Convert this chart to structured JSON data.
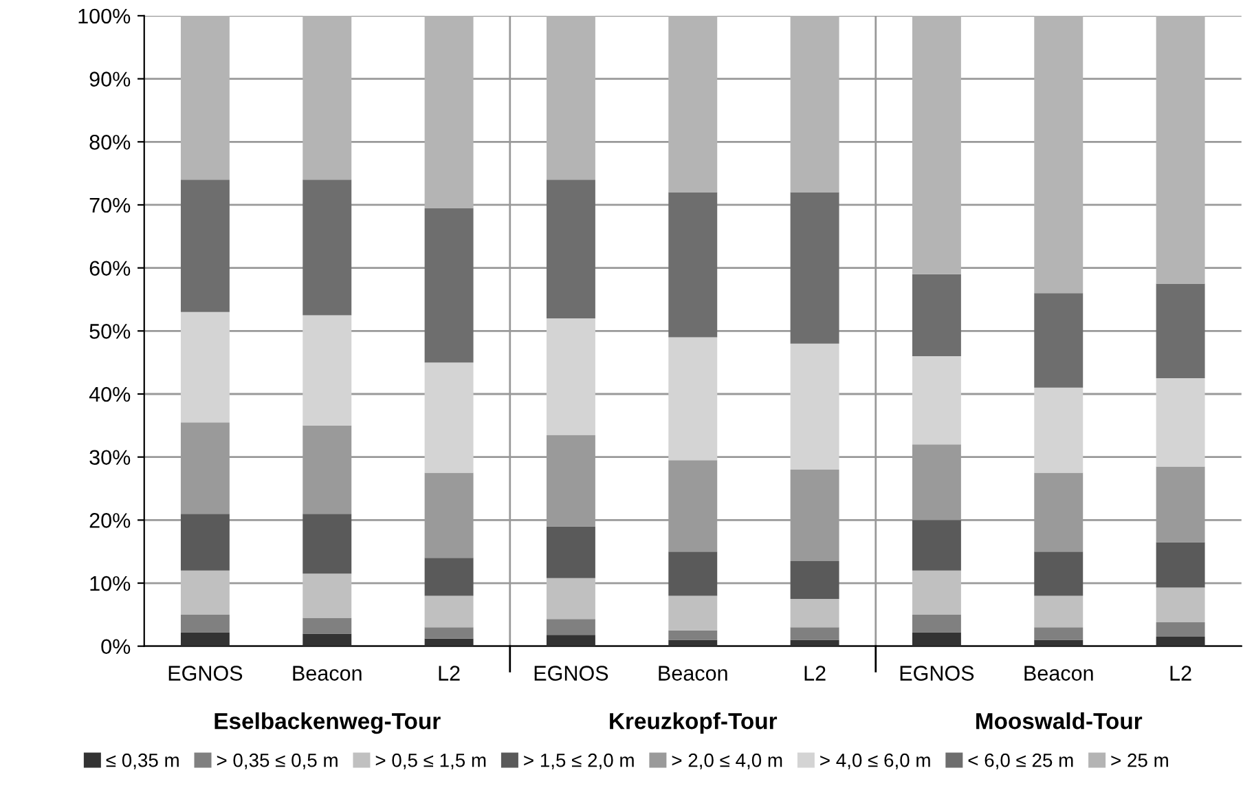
{
  "chart_data": {
    "type": "bar",
    "stacked": true,
    "categories": [
      "EGNOS",
      "Beacon",
      "L2",
      "EGNOS",
      "Beacon",
      "L2",
      "EGNOS",
      "Beacon",
      "L2"
    ],
    "annotations": [
      "Eselbackenweg-Tour",
      "Kreuzkopf-Tour",
      "Mooswald-Tour"
    ],
    "series": [
      {
        "name": "≤ 0,35 m",
        "color": "#333333",
        "values": [
          2.2,
          2,
          1.2,
          1.8,
          1,
          1,
          2.2,
          1,
          1.5
        ]
      },
      {
        "name": "> 0,35 ≤ 0,5 m",
        "color": "#808080",
        "values": [
          2.8,
          2.5,
          1.8,
          2.5,
          1.5,
          2,
          2.8,
          2,
          2.3
        ]
      },
      {
        "name": "> 0,5 ≤ 1,5 m",
        "color": "#c0c0c0",
        "values": [
          7,
          7,
          5,
          6.5,
          5.5,
          4.5,
          7,
          5,
          5.5
        ]
      },
      {
        "name": "> 1,5 ≤ 2,0 m",
        "color": "#5a5a5a",
        "values": [
          9,
          9.5,
          6,
          8.2,
          7,
          6,
          8,
          7,
          7.2
        ]
      },
      {
        "name": "> 2,0 ≤ 4,0 m",
        "color": "#9a9a9a",
        "values": [
          14.5,
          14,
          13.5,
          14.5,
          14.5,
          14.5,
          12,
          12.5,
          12
        ]
      },
      {
        "name": "> 4,0 ≤ 6,0 m",
        "color": "#d4d4d4",
        "values": [
          17.5,
          17.5,
          17.5,
          18.5,
          19.5,
          20,
          14,
          13.5,
          14
        ]
      },
      {
        "name": "< 6,0 ≤ 25 m",
        "color": "#6e6e6e",
        "values": [
          21,
          21.5,
          24.5,
          22,
          23,
          24,
          13,
          15,
          15
        ]
      },
      {
        "name": "> 25 m",
        "color": "#b4b4b4",
        "values": [
          26,
          26,
          30.5,
          26,
          28,
          28,
          41,
          44,
          42.5
        ]
      }
    ],
    "ylim": [
      0,
      100
    ],
    "yticks": [
      {
        "value": 0,
        "label": "0%"
      },
      {
        "value": 10,
        "label": "10%"
      },
      {
        "value": 20,
        "label": "20%"
      },
      {
        "value": 30,
        "label": "30%"
      },
      {
        "value": 40,
        "label": "40%"
      },
      {
        "value": 50,
        "label": "50%"
      },
      {
        "value": 60,
        "label": "60%"
      },
      {
        "value": 70,
        "label": "70%"
      },
      {
        "value": 80,
        "label": "80%"
      },
      {
        "value": 90,
        "label": "90%"
      },
      {
        "value": 100,
        "label": "100%"
      }
    ],
    "grid": "y",
    "legend": "bottom"
  }
}
